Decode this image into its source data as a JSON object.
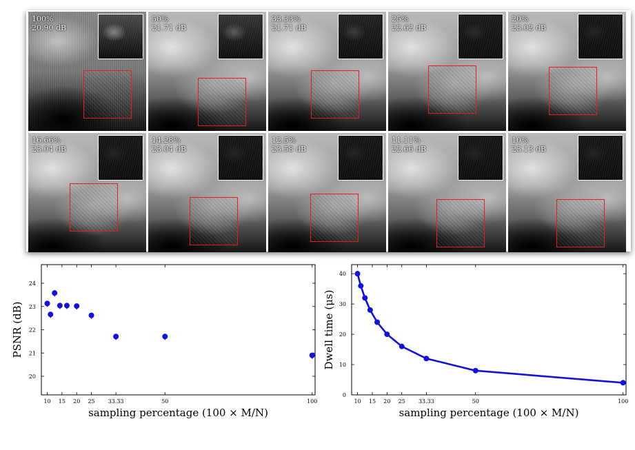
{
  "tiles": [
    {
      "pct": "100%",
      "psnr": "20.90 dB",
      "inset_tone": 0.62
    },
    {
      "pct": "50%",
      "psnr": "21.71 dB",
      "inset_tone": 0.4
    },
    {
      "pct": "33.33%",
      "psnr": "21.71 dB",
      "inset_tone": 0.22
    },
    {
      "pct": "25%",
      "psnr": "22.62 dB",
      "inset_tone": 0.14
    },
    {
      "pct": "20%",
      "psnr": "23.02 dB",
      "inset_tone": 0.1
    },
    {
      "pct": "16.66%",
      "psnr": "23.04 dB",
      "inset_tone": 0.1
    },
    {
      "pct": "14.28%",
      "psnr": "23.04 dB",
      "inset_tone": 0.1
    },
    {
      "pct": "12.5%",
      "psnr": "23.58 dB",
      "inset_tone": 0.1
    },
    {
      "pct": "11.11%",
      "psnr": "22.66 dB",
      "inset_tone": 0.1
    },
    {
      "pct": "10%",
      "psnr": "23.13 dB",
      "inset_tone": 0.1
    }
  ],
  "colors": {
    "roi_box": "#e02020",
    "marker": "#1010e0",
    "inset_border": "#ffffff"
  },
  "chart_data": [
    {
      "type": "scatter",
      "ylabel": "PSNR (dB)",
      "xlabel": "sampling percentage (100 × M/N)",
      "x_ticks": [
        "10",
        "15",
        "20",
        "25",
        "33.33",
        "50",
        "100"
      ],
      "y_ticks": [
        "20",
        "21",
        "22",
        "23",
        "24"
      ],
      "ylim": [
        19.2,
        24.8
      ],
      "xlim": [
        8,
        101
      ],
      "grid": false,
      "x": [
        10,
        11.11,
        12.5,
        14.28,
        16.66,
        20,
        25,
        33.33,
        50,
        100
      ],
      "y": [
        23.13,
        22.66,
        23.58,
        23.04,
        23.04,
        23.02,
        22.62,
        21.71,
        21.71,
        20.9
      ]
    },
    {
      "type": "line",
      "ylabel": "Dwell time (μs)",
      "xlabel": "sampling percentage (100 × M/N)",
      "x_ticks": [
        "10",
        "15",
        "20",
        "25",
        "33.33",
        "50",
        "100"
      ],
      "y_ticks": [
        "0",
        "10",
        "20",
        "30",
        "40"
      ],
      "ylim": [
        0,
        43
      ],
      "xlim": [
        8,
        101
      ],
      "grid": false,
      "x": [
        10,
        11.11,
        12.5,
        14.28,
        16.66,
        20,
        25,
        33.33,
        50,
        100
      ],
      "y": [
        40,
        36,
        32,
        28,
        24,
        20,
        16,
        12,
        8,
        4
      ]
    }
  ]
}
